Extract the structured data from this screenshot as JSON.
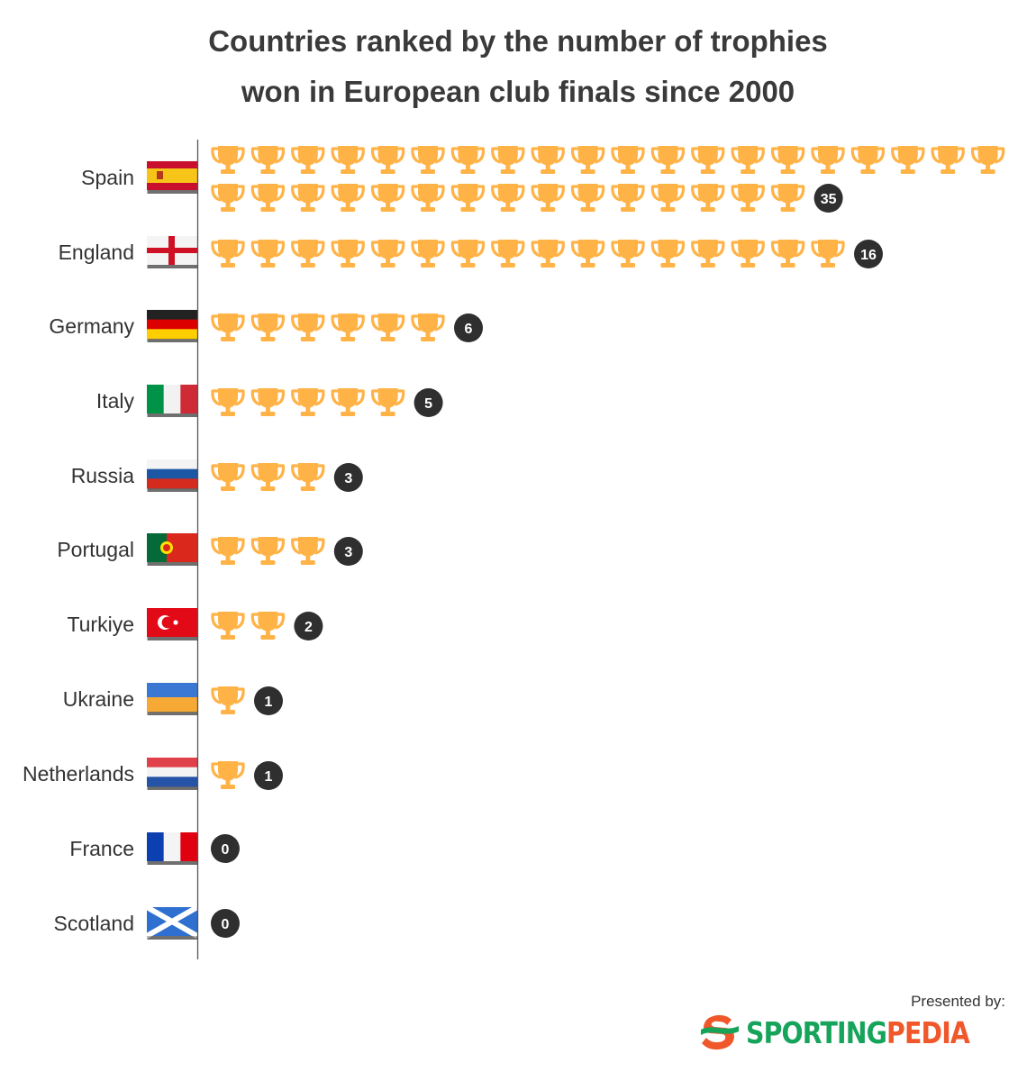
{
  "title_lines": [
    "Countries ranked by the number of trophies",
    "won in European club finals since 2000"
  ],
  "footer": {
    "presented_by": "Presented by:",
    "brand_part1": "SPORTING",
    "brand_part2": "PEDIA"
  },
  "colors": {
    "trophy": "#ffb347",
    "badge": "#2f2f2f",
    "axis": "#555555",
    "brand_green": "#16a35a",
    "brand_orange": "#f0572a"
  },
  "chart_data": {
    "type": "bar",
    "title": "Countries ranked by the number of trophies won in European club finals since 2000",
    "categories": [
      "Spain",
      "England",
      "Germany",
      "Italy",
      "Russia",
      "Portugal",
      "Turkiye",
      "Ukraine",
      "Netherlands",
      "France",
      "Scotland"
    ],
    "values": [
      35,
      16,
      6,
      5,
      3,
      3,
      2,
      1,
      1,
      0,
      0
    ],
    "trophies_per_row": 20
  }
}
